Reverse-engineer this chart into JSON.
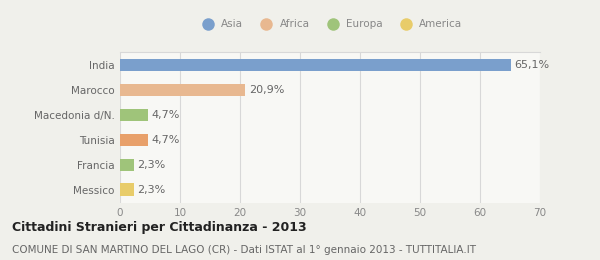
{
  "categories": [
    "Messico",
    "Francia",
    "Tunisia",
    "Macedonia d/N.",
    "Marocco",
    "India"
  ],
  "values": [
    2.3,
    2.3,
    4.7,
    4.7,
    20.9,
    65.1
  ],
  "labels": [
    "2,3%",
    "2,3%",
    "4,7%",
    "4,7%",
    "20,9%",
    "65,1%"
  ],
  "colors": [
    "#e8cc6a",
    "#9fc47a",
    "#e8a06a",
    "#9fc47a",
    "#e8b890",
    "#7a9fcc"
  ],
  "legend_items": [
    {
      "label": "Asia",
      "color": "#7a9fcc"
    },
    {
      "label": "Africa",
      "color": "#e8b890"
    },
    {
      "label": "Europa",
      "color": "#9fc47a"
    },
    {
      "label": "America",
      "color": "#e8cc6a"
    }
  ],
  "xlim": [
    0,
    70
  ],
  "xticks": [
    0,
    10,
    20,
    30,
    40,
    50,
    60,
    70
  ],
  "title": "Cittadini Stranieri per Cittadinanza - 2013",
  "subtitle": "COMUNE DI SAN MARTINO DEL LAGO (CR) - Dati ISTAT al 1° gennaio 2013 - TUTTITALIA.IT",
  "background_color": "#f0f0eb",
  "bar_background": "#f8f8f5",
  "grid_color": "#d8d8d8",
  "value_color": "#666666",
  "ylabel_color": "#666666",
  "title_fontsize": 9,
  "subtitle_fontsize": 7.5,
  "axis_fontsize": 7.5,
  "label_fontsize": 8.0
}
